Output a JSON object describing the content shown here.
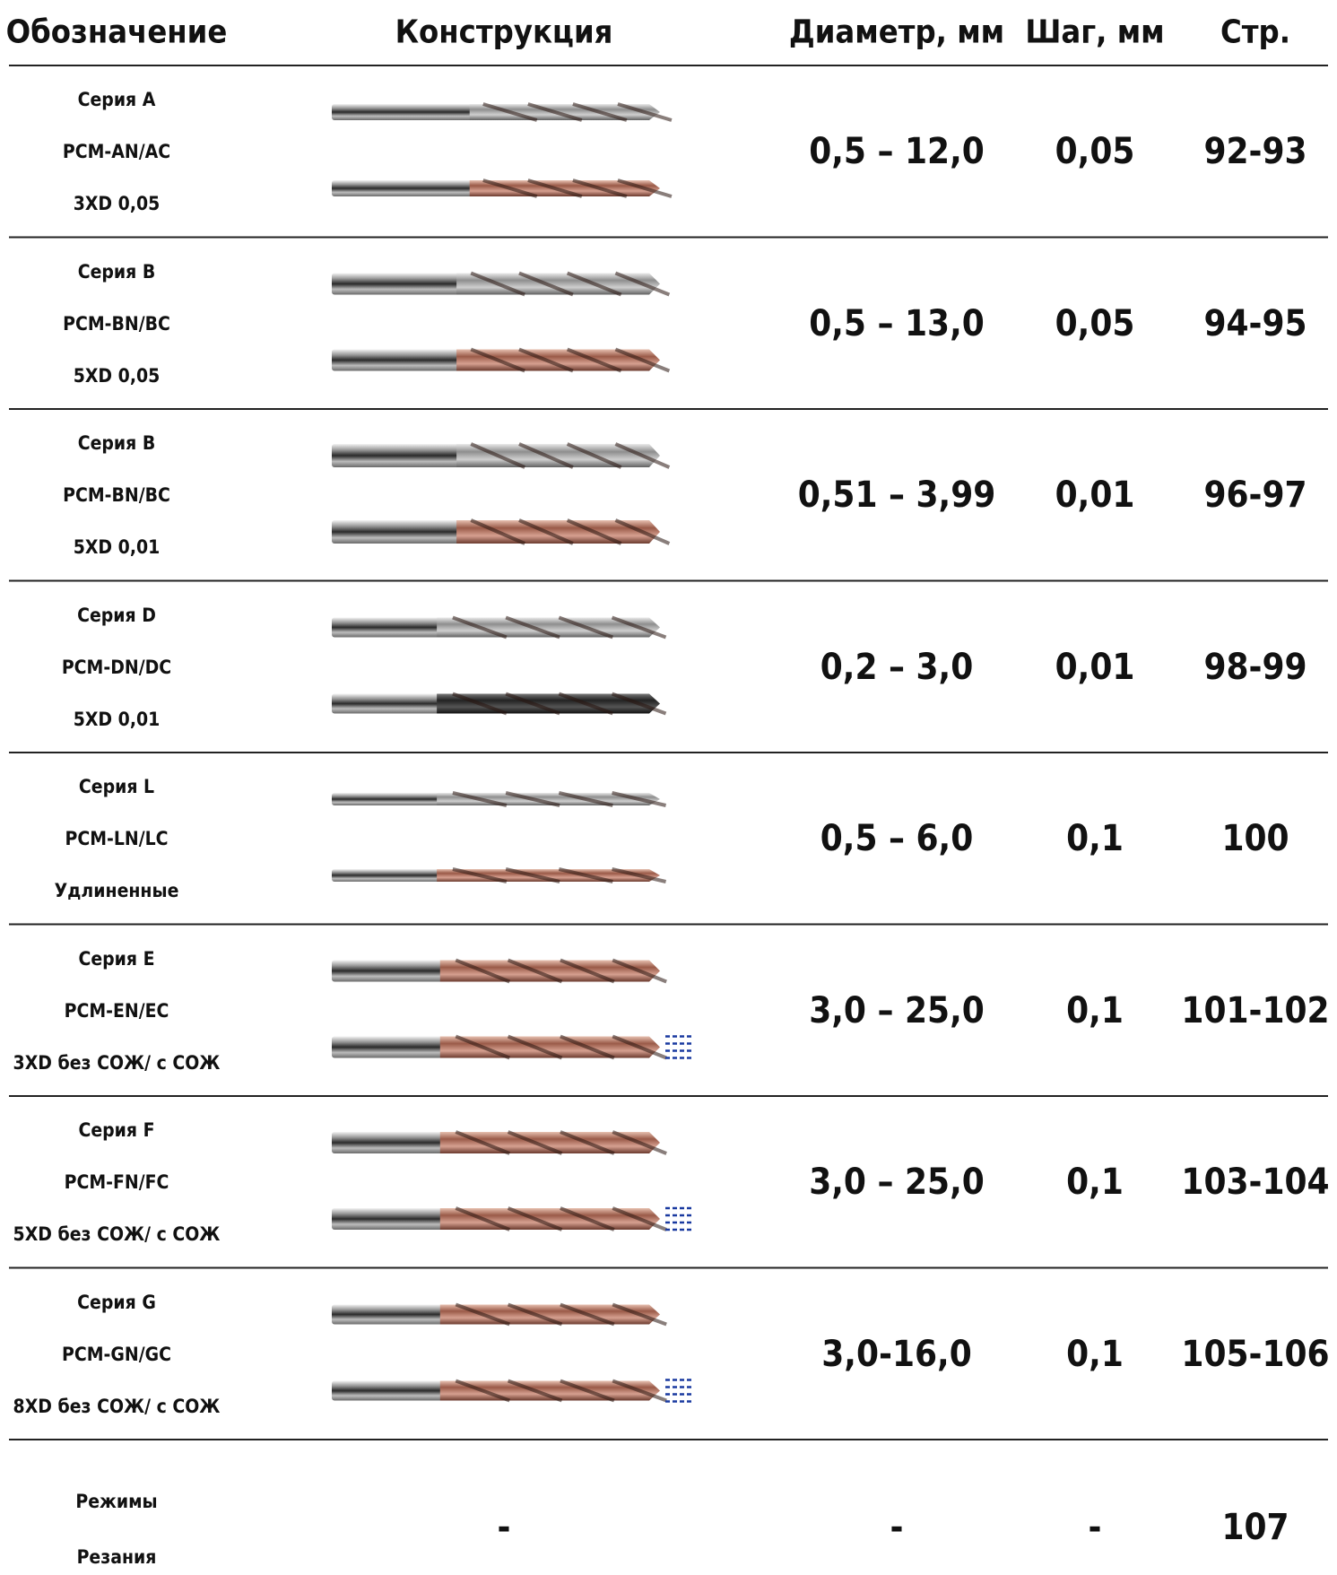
{
  "header": {
    "designation": "Обозначение",
    "construction": "Конструкция",
    "diameter": "Диаметр, мм",
    "step": "Шаг, мм",
    "page": "Стр."
  },
  "rows": [
    {
      "designation": [
        "Серия A",
        "PCM-AN/AC",
        "3XD 0,05"
      ],
      "diameter": "0,5 – 12,0",
      "step": "0,05",
      "page": "92-93"
    },
    {
      "designation": [
        "Серия B",
        "PCM-BN/BC",
        "5XD 0,05"
      ],
      "diameter": "0,5 – 13,0",
      "step": "0,05",
      "page": "94-95"
    },
    {
      "designation": [
        "Серия B",
        "PCM-BN/BC",
        "5XD  0,01"
      ],
      "diameter": "0,51 – 3,99",
      "step": "0,01",
      "page": "96-97"
    },
    {
      "designation": [
        "Серия D",
        "PCM-DN/DC",
        "5XD 0,01"
      ],
      "diameter": "0,2 – 3,0",
      "step": "0,01",
      "page": "98-99"
    },
    {
      "designation": [
        "Серия L",
        "PCM-LN/LC",
        "Удлиненные"
      ],
      "diameter": "0,5 – 6,0",
      "step": "0,1",
      "page": "100"
    },
    {
      "designation": [
        "Серия E",
        "PCM-EN/EC",
        "3XD без СОЖ/ с СОЖ"
      ],
      "diameter": "3,0 – 25,0",
      "step": "0,1",
      "page": "101-102"
    },
    {
      "designation": [
        "Серия F",
        "PCM-FN/FC",
        "5XD без СОЖ/ с СОЖ"
      ],
      "diameter": "3,0 – 25,0",
      "step": "0,1",
      "page": "103-104"
    },
    {
      "designation": [
        "Серия G",
        "PCM-GN/GC",
        "8XD без СОЖ/ с СОЖ"
      ],
      "diameter": "3,0-16,0",
      "step": "0,1",
      "page": "105-106"
    },
    {
      "designation": [
        "Режимы",
        "Резания"
      ],
      "construction": "-",
      "diameter": "-",
      "step": "-",
      "page": "107"
    }
  ]
}
